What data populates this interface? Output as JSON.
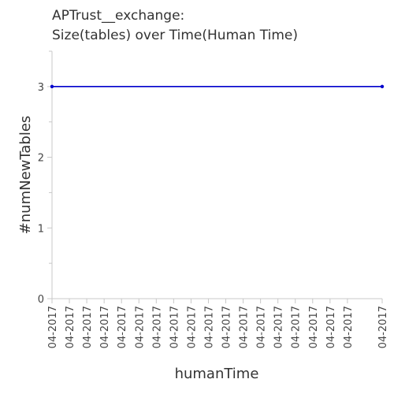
{
  "chart_data": {
    "type": "line",
    "title": [
      "APTrust__exchange:",
      "Size(tables) over Time(Human Time)"
    ],
    "xlabel": "humanTime",
    "ylabel": "#numNewTables",
    "categories": [
      "04-2017",
      "04-2017",
      "04-2017",
      "04-2017",
      "04-2017",
      "04-2017",
      "04-2017",
      "04-2017",
      "04-2017",
      "04-2017",
      "04-2017",
      "04-2017",
      "04-2017",
      "04-2017",
      "04-2017",
      "04-2017",
      "04-2017",
      "04-2017",
      "04-2017",
      "04-2017"
    ],
    "x_tick_positions": [
      0,
      1,
      2,
      3,
      4,
      5,
      6,
      7,
      8,
      9,
      10,
      11,
      12,
      13,
      14,
      15,
      16,
      17,
      19
    ],
    "xlim": [
      0,
      19
    ],
    "ylim": [
      0,
      3.5
    ],
    "y_ticks": [
      0,
      1,
      2,
      3
    ],
    "y_minor_ticks": [
      0.5,
      1.5,
      2.5,
      3.5
    ],
    "grid": false,
    "series": [
      {
        "x": [
          0,
          19
        ],
        "values": [
          3,
          3
        ],
        "color": "#0000cc"
      }
    ]
  }
}
